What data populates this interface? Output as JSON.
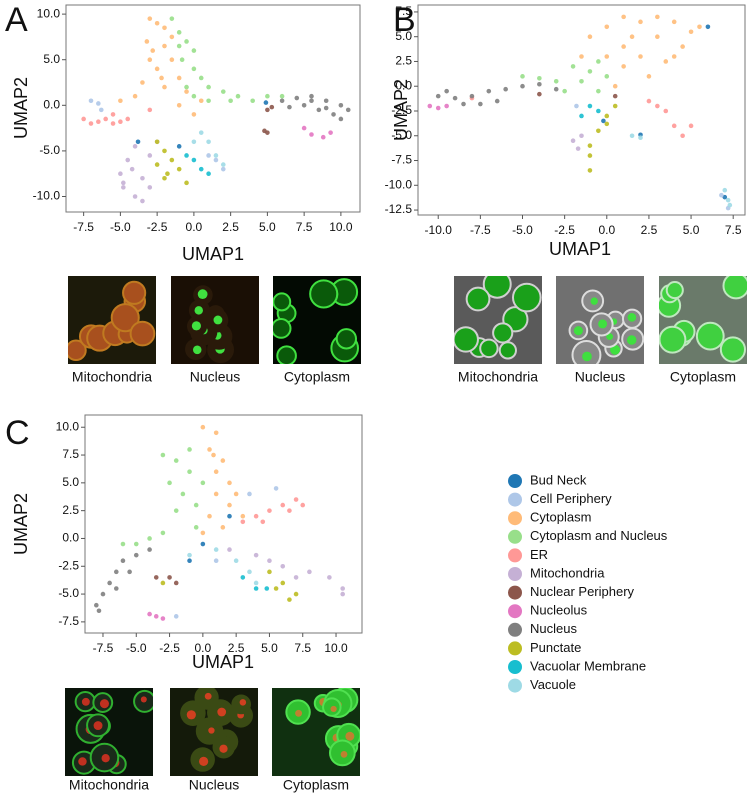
{
  "chart_data": [
    {
      "type": "scatter",
      "panel_label": "A",
      "xlabel": "UMAP1",
      "ylabel": "UMAP2",
      "xlim": [
        -8.7,
        11.3
      ],
      "ylim": [
        -11.7,
        11.0
      ],
      "xticks": [
        -7.5,
        {
          "value": -5,
          "label": "-5.0"
        },
        -2.5,
        {
          "value": 0,
          "label": "0.0"
        },
        2.5,
        {
          "value": 5,
          "label": "5.0"
        },
        7.5,
        {
          "value": 10,
          "label": "10.0"
        }
      ],
      "yticks": [
        {
          "value": 10,
          "label": "10.0"
        },
        {
          "value": 5,
          "label": "5.0"
        },
        {
          "value": 0,
          "label": "0.0"
        },
        {
          "value": -5,
          "label": "-5.0"
        },
        {
          "value": -10,
          "label": "-10.0"
        }
      ],
      "images": [
        "Mitochondria",
        "Nucleus",
        "Cytoplasm"
      ],
      "series": [
        {
          "color": "#1f77b4",
          "x": [
            4.9,
            -1,
            -3.8
          ],
          "y": [
            0.3,
            -4.5,
            -4
          ]
        },
        {
          "color": "#aec7e8",
          "x": [
            -7,
            -6.5,
            -6.3,
            1,
            1.5,
            2
          ],
          "y": [
            0.5,
            0.2,
            -0.5,
            -5.5,
            -6,
            -7
          ]
        },
        {
          "color": "#ffbb78",
          "x": [
            -3,
            -2.5,
            -2,
            -3.2,
            -2.8,
            -2,
            -1.5,
            -2.5,
            -1,
            -2,
            -0.5,
            -1,
            0,
            -3.5,
            -4,
            -5,
            -1.5,
            -3,
            0.5,
            -2.2
          ],
          "y": [
            9.5,
            9,
            8.5,
            7,
            6,
            6.5,
            5,
            4,
            3,
            2,
            1.5,
            0,
            -1,
            2.5,
            1,
            0.5,
            7.5,
            5,
            0.5,
            3
          ]
        },
        {
          "color": "#98df8a",
          "x": [
            -1.5,
            -1,
            -0.5,
            0,
            -0.8,
            0,
            0.5,
            1,
            2,
            3,
            4,
            5,
            6,
            0,
            1,
            -0.5,
            2.5,
            -1
          ],
          "y": [
            9.5,
            8,
            7,
            6,
            5,
            4,
            3,
            2,
            1.5,
            1,
            0.5,
            1,
            1,
            1,
            0.5,
            2,
            0.5,
            6.5
          ]
        },
        {
          "color": "#ff9896",
          "x": [
            -7.5,
            -7,
            -6.5,
            -6,
            -5.5,
            -5,
            -4.5,
            -5.5,
            -3
          ],
          "y": [
            -1.5,
            -2,
            -1.8,
            -1.5,
            -2,
            -1.8,
            -1.5,
            -1,
            -0.5
          ]
        },
        {
          "color": "#c5b0d5",
          "x": [
            -4,
            -4.5,
            -5,
            -4.8,
            -4,
            -3.5,
            -3,
            -3,
            -3.5,
            -4.2,
            -2.5,
            -4.8
          ],
          "y": [
            -4.5,
            -6,
            -7.5,
            -9,
            -10,
            -10.5,
            -9,
            -5.5,
            -8,
            -7,
            -4,
            -8.5
          ]
        },
        {
          "color": "#8c564b",
          "x": [
            5,
            5.3,
            5,
            4.8
          ],
          "y": [
            -0.5,
            -0.2,
            -3,
            -2.8
          ]
        },
        {
          "color": "#e377c2",
          "x": [
            7.5,
            8,
            8.8,
            9.3
          ],
          "y": [
            -2.5,
            -3.2,
            -3.5,
            -3
          ]
        },
        {
          "color": "#7f7f7f",
          "x": [
            6,
            7,
            8,
            9,
            10,
            10.5,
            9.5,
            8.5,
            7.5,
            10,
            6.5,
            8,
            9
          ],
          "y": [
            0.5,
            0.8,
            0.5,
            0.5,
            0,
            -0.5,
            -1,
            -0.5,
            0,
            -1.5,
            -0.2,
            1,
            -0.3
          ]
        },
        {
          "color": "#bcbd22",
          "x": [
            -2,
            -2.5,
            -2,
            -1,
            -0.5,
            -1.5,
            -1.8,
            -2.5
          ],
          "y": [
            -5,
            -6.5,
            -8,
            -7,
            -8.5,
            -6,
            -7.5,
            -4
          ]
        },
        {
          "color": "#17becf",
          "x": [
            0,
            0.5,
            1,
            -0.5
          ],
          "y": [
            -6,
            -7,
            -7.5,
            -5.5
          ]
        },
        {
          "color": "#9edae5",
          "x": [
            0.5,
            1,
            1.5,
            2,
            0
          ],
          "y": [
            -3,
            -4,
            -5.5,
            -6.5,
            -4
          ]
        }
      ]
    },
    {
      "type": "scatter",
      "panel_label": "B",
      "xlabel": "UMAP1",
      "ylabel": "UMAP2",
      "xlim": [
        -11.2,
        8.2
      ],
      "ylim": [
        -13.0,
        8.2
      ],
      "xticks": [
        {
          "value": -10,
          "label": "-10.0"
        },
        -7.5,
        {
          "value": -5,
          "label": "-5.0"
        },
        -2.5,
        {
          "value": 0,
          "label": "0.0"
        },
        2.5,
        {
          "value": 5,
          "label": "5.0"
        },
        7.5
      ],
      "yticks": [
        7.5,
        {
          "value": 5,
          "label": "5.0"
        },
        2.5,
        {
          "value": 0,
          "label": "0.0"
        },
        -2.5,
        {
          "value": -5,
          "label": "-5.0"
        },
        -7.5,
        {
          "value": -10,
          "label": "-10.0"
        },
        -12.5
      ],
      "images": [
        "Mitochondria",
        "Nucleus",
        "Cytoplasm"
      ],
      "series": [
        {
          "color": "#1f77b4",
          "x": [
            2,
            7,
            6,
            -0.2
          ],
          "y": [
            -4.9,
            -11.2,
            6,
            -3.5
          ]
        },
        {
          "color": "#aec7e8",
          "x": [
            6.8,
            7.2,
            -1.8
          ],
          "y": [
            -11,
            -12.3,
            -2
          ]
        },
        {
          "color": "#ffbb78",
          "x": [
            0,
            1,
            2,
            3,
            4,
            5,
            1.5,
            3,
            4.5,
            2,
            1,
            3.5,
            0,
            -1,
            2.5,
            0.5,
            4,
            5.5,
            -1.5,
            1
          ],
          "y": [
            6,
            7,
            6.5,
            7,
            6.5,
            5.5,
            5,
            5,
            4,
            3,
            2,
            2.5,
            3,
            5,
            1,
            0,
            3,
            6,
            3,
            4
          ]
        },
        {
          "color": "#98df8a",
          "x": [
            -2,
            -1,
            -1.5,
            -3,
            -4,
            -5,
            -0.5,
            0,
            -2.5,
            -0.5
          ],
          "y": [
            2,
            1.5,
            0.5,
            0.5,
            0.8,
            1,
            2.5,
            1,
            -0.5,
            -0.5
          ]
        },
        {
          "color": "#ff9896",
          "x": [
            2.5,
            3.5,
            4,
            4.5,
            5,
            3,
            -8
          ],
          "y": [
            -1.5,
            -2.5,
            -4,
            -5,
            -4,
            -2,
            -1.2
          ]
        },
        {
          "color": "#c5b0d5",
          "x": [
            -2,
            -1.7,
            -1.5
          ],
          "y": [
            -5.5,
            -6.3,
            -5
          ]
        },
        {
          "color": "#8c564b",
          "x": [
            -4,
            0.5
          ],
          "y": [
            -0.8,
            -1
          ]
        },
        {
          "color": "#e377c2",
          "x": [
            -10.5,
            -10,
            -9.5
          ],
          "y": [
            -2,
            -2.2,
            -2
          ]
        },
        {
          "color": "#7f7f7f",
          "x": [
            -10,
            -9,
            -8,
            -7,
            -6,
            -5,
            -4,
            -8.5,
            -7.5,
            -6.5,
            -3,
            -9.5
          ],
          "y": [
            -1,
            -1.2,
            -1,
            -0.5,
            -0.3,
            0,
            0.2,
            -1.8,
            -1.8,
            -1.5,
            -0.3,
            -0.5
          ]
        },
        {
          "color": "#bcbd22",
          "x": [
            0.5,
            0,
            -0.5,
            -1,
            -1,
            -1,
            0
          ],
          "y": [
            -2,
            -3,
            -4.5,
            -6,
            -7,
            -8.5,
            -3.8
          ]
        },
        {
          "color": "#17becf",
          "x": [
            -1,
            -1.5,
            -0.5
          ],
          "y": [
            -2,
            -3,
            -2.5
          ]
        },
        {
          "color": "#9edae5",
          "x": [
            7,
            7.2,
            7.3,
            1.5,
            2
          ],
          "y": [
            -10.5,
            -11.5,
            -12,
            -5,
            -5.2
          ]
        }
      ]
    },
    {
      "type": "scatter",
      "panel_label": "C",
      "xlabel": "UMAP1",
      "ylabel": "UMAP2",
      "xlim": [
        -8.85,
        11.95
      ],
      "ylim": [
        -8.5,
        11.1
      ],
      "xticks": [
        -7.5,
        {
          "value": -5,
          "label": "-5.0"
        },
        -2.5,
        {
          "value": 0,
          "label": "0.0"
        },
        2.5,
        {
          "value": 5,
          "label": "5.0"
        },
        7.5,
        {
          "value": 10,
          "label": "10.0"
        }
      ],
      "yticks": [
        {
          "value": 10,
          "label": "10.0"
        },
        7.5,
        {
          "value": 5,
          "label": "5.0"
        },
        2.5,
        {
          "value": 0,
          "label": "0.0"
        },
        -2.5,
        {
          "value": -5,
          "label": "-5.0"
        },
        -7.5
      ],
      "images": [
        "Mitochondria",
        "Nucleus",
        "Cytoplasm"
      ],
      "series": [
        {
          "color": "#1f77b4",
          "x": [
            0,
            2,
            -1
          ],
          "y": [
            -0.5,
            2,
            -2
          ]
        },
        {
          "color": "#aec7e8",
          "x": [
            3.5,
            5.5,
            1,
            -2
          ],
          "y": [
            4,
            4.5,
            -2,
            -7
          ]
        },
        {
          "color": "#ffbb78",
          "x": [
            0,
            1,
            0.5,
            1.5,
            1,
            2,
            1,
            2,
            0.5,
            1.5,
            0,
            2.5,
            0.8,
            3
          ],
          "y": [
            10,
            9.5,
            8,
            7,
            6,
            5,
            4,
            3,
            2,
            1,
            0.5,
            4,
            7.5,
            2
          ]
        },
        {
          "color": "#98df8a",
          "x": [
            -3,
            -2,
            -1,
            -2.5,
            -1.5,
            -0.5,
            -2,
            -0.5,
            -4,
            -5,
            -6,
            -3,
            0,
            -1
          ],
          "y": [
            7.5,
            7,
            6,
            5,
            4,
            3,
            2.5,
            1,
            0,
            -0.5,
            -0.5,
            0.5,
            5,
            8
          ]
        },
        {
          "color": "#ff9896",
          "x": [
            4,
            5,
            6,
            7,
            7.5,
            4.5,
            3,
            6.5
          ],
          "y": [
            2,
            2.5,
            3,
            3.5,
            3,
            1.5,
            1.5,
            2.5
          ]
        },
        {
          "color": "#c5b0d5",
          "x": [
            2,
            4,
            6,
            8,
            9.5,
            10.5,
            10.5,
            7,
            5
          ],
          "y": [
            -1,
            -1.5,
            -2.5,
            -3,
            -3.5,
            -4.5,
            -5,
            -3.5,
            -2
          ]
        },
        {
          "color": "#8c564b",
          "x": [
            -2.5,
            -2,
            -3.5
          ],
          "y": [
            -3.5,
            -4,
            -3.5
          ]
        },
        {
          "color": "#e377c2",
          "x": [
            -3.5,
            -3,
            -4
          ],
          "y": [
            -7,
            -7.2,
            -6.8
          ]
        },
        {
          "color": "#7f7f7f",
          "x": [
            -8,
            -7.5,
            -7,
            -6.5,
            -6,
            -5,
            -4,
            -7.8,
            -5.5,
            -6.5
          ],
          "y": [
            -6,
            -5,
            -4,
            -3,
            -2,
            -1.5,
            -1,
            -6.5,
            -3,
            -4.5
          ]
        },
        {
          "color": "#bcbd22",
          "x": [
            5,
            6,
            6.5,
            7,
            5.5,
            -3
          ],
          "y": [
            -3,
            -4,
            -5.5,
            -5,
            -4.5,
            -4
          ]
        },
        {
          "color": "#17becf",
          "x": [
            4,
            4.8,
            3
          ],
          "y": [
            -4.5,
            -4.5,
            -3.5
          ]
        },
        {
          "color": "#9edae5",
          "x": [
            1,
            2.5,
            3.5,
            4,
            -1
          ],
          "y": [
            -1,
            -2,
            -3,
            -4,
            -1.5
          ]
        }
      ]
    }
  ],
  "legend": [
    {
      "name": "Bud Neck",
      "color": "#1f77b4"
    },
    {
      "name": "Cell Periphery",
      "color": "#aec7e8"
    },
    {
      "name": "Cytoplasm",
      "color": "#ffbb78"
    },
    {
      "name": "Cytoplasm and Nucleus",
      "color": "#98df8a"
    },
    {
      "name": "ER",
      "color": "#ff9896"
    },
    {
      "name": "Mitochondria",
      "color": "#c5b0d5"
    },
    {
      "name": "Nuclear Periphery",
      "color": "#8c564b"
    },
    {
      "name": "Nucleolus",
      "color": "#e377c2"
    },
    {
      "name": "Nucleus",
      "color": "#7f7f7f"
    },
    {
      "name": "Punctate",
      "color": "#bcbd22"
    },
    {
      "name": "Vacuolar Membrane",
      "color": "#17becf"
    },
    {
      "name": "Vacuole",
      "color": "#9edae5"
    }
  ]
}
